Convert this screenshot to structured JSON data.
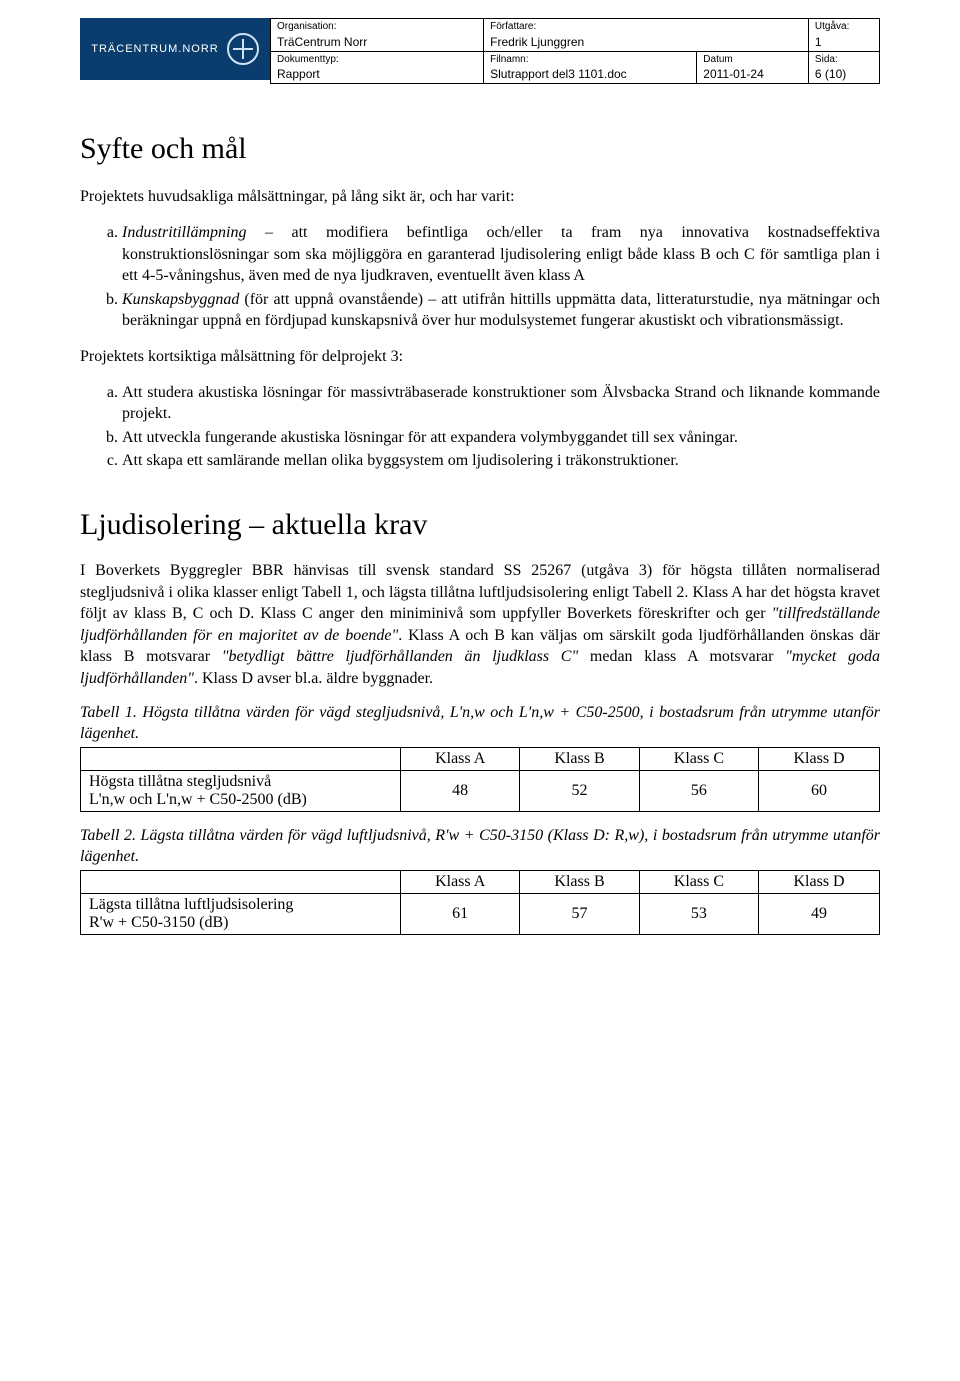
{
  "header": {
    "logo_text": "TRÄCENTRUM.NORR",
    "labels": {
      "organisation": "Organisation:",
      "forfattare": "Författare:",
      "utgava": "Utgåva:",
      "dokumenttyp": "Dokumenttyp:",
      "filnamn": "Filnamn:",
      "datum": "Datum",
      "sida": "Sida:"
    },
    "values": {
      "organisation": "TräCentrum Norr",
      "forfattare": "Fredrik Ljunggren",
      "utgava": "1",
      "dokumenttyp": "Rapport",
      "filnamn": "Slutrapport del3 1101.doc",
      "datum": "2011-01-24",
      "sida": "6 (10)"
    }
  },
  "section1": {
    "title": "Syfte och mål",
    "intro": "Projektets huvudsakliga målsättningar, på lång sikt är, och har varit:",
    "items": [
      {
        "lead": "Industritillämpning",
        "rest": " – att modifiera befintliga och/eller ta fram nya innovativa kostnadseffektiva konstruktionslösningar som ska möjliggöra en garanterad ljudisolering enligt både klass B och C för samtliga plan i ett 4-5-våningshus, även med de nya ljudkraven, eventuellt även klass A"
      },
      {
        "lead": "Kunskapsbyggnad",
        "rest": " (för att uppnå ovanstående) – att utifrån hittills uppmätta data, litteraturstudie, nya mätningar och beräkningar uppnå en fördjupad kunskapsnivå över hur modulsystemet fungerar akustiskt och vibrationsmässigt."
      }
    ],
    "short_intro": "Projektets kortsiktiga målsättning för delprojekt 3:",
    "short_items": [
      "Att studera akustiska lösningar för massivträbaserade konstruktioner som Älvsbacka Strand och liknande kommande projekt.",
      "Att utveckla fungerande akustiska lösningar för att expandera volymbyggandet till sex våningar.",
      "Att skapa ett samlärande mellan olika byggsystem om ljudisolering i träkonstruktioner."
    ]
  },
  "section2": {
    "title": "Ljudisolering – aktuella krav",
    "para_pre": "I Boverkets Byggregler BBR hänvisas till svensk standard SS 25267 (utgåva 3) för högsta tillåten normaliserad stegljudsnivå i olika klasser enligt Tabell 1, och lägsta tillåtna luftljudsisolering enligt Tabell 2. Klass A har det högsta kravet följt av klass B, C och D. Klass C anger den miniminivå som uppfyller Boverkets föreskrifter och ger ",
    "q1": "\"tillfredställande ljudförhållanden för en majoritet av de boende\"",
    "mid1": ". Klass A och B kan väljas om särskilt goda ljudförhållanden önskas där klass B motsvarar ",
    "q2": "\"betydligt bättre ljudförhållanden än ljudklass C\"",
    "mid2": " medan klass A motsvarar ",
    "q3": "\"mycket goda ljudförhållanden\"",
    "para_post": ". Klass D avser bl.a. äldre byggnader."
  },
  "table1": {
    "caption": "Tabell 1. Högsta tillåtna värden för vägd stegljudsnivå, L'n,w och L'n,w + C50-2500, i bostadsrum från utrymme utanför lägenhet.",
    "columns": [
      "Klass A",
      "Klass B",
      "Klass C",
      "Klass D"
    ],
    "row_label_line1": "Högsta tillåtna stegljudsnivå",
    "row_label_line2": "L'n,w och L'n,w + C50-2500 (dB)",
    "values": [
      "48",
      "52",
      "56",
      "60"
    ]
  },
  "table2": {
    "caption": "Tabell 2. Lägsta tillåtna värden för vägd luftljudsnivå, R'w + C50-3150 (Klass D: R,w), i bostadsrum från utrymme utanför lägenhet.",
    "columns": [
      "Klass A",
      "Klass B",
      "Klass C",
      "Klass D"
    ],
    "row_label_line1": "Lägsta tillåtna luftljudsisolering",
    "row_label_line2": "R'w + C50-3150 (dB)",
    "values": [
      "61",
      "57",
      "53",
      "49"
    ]
  }
}
